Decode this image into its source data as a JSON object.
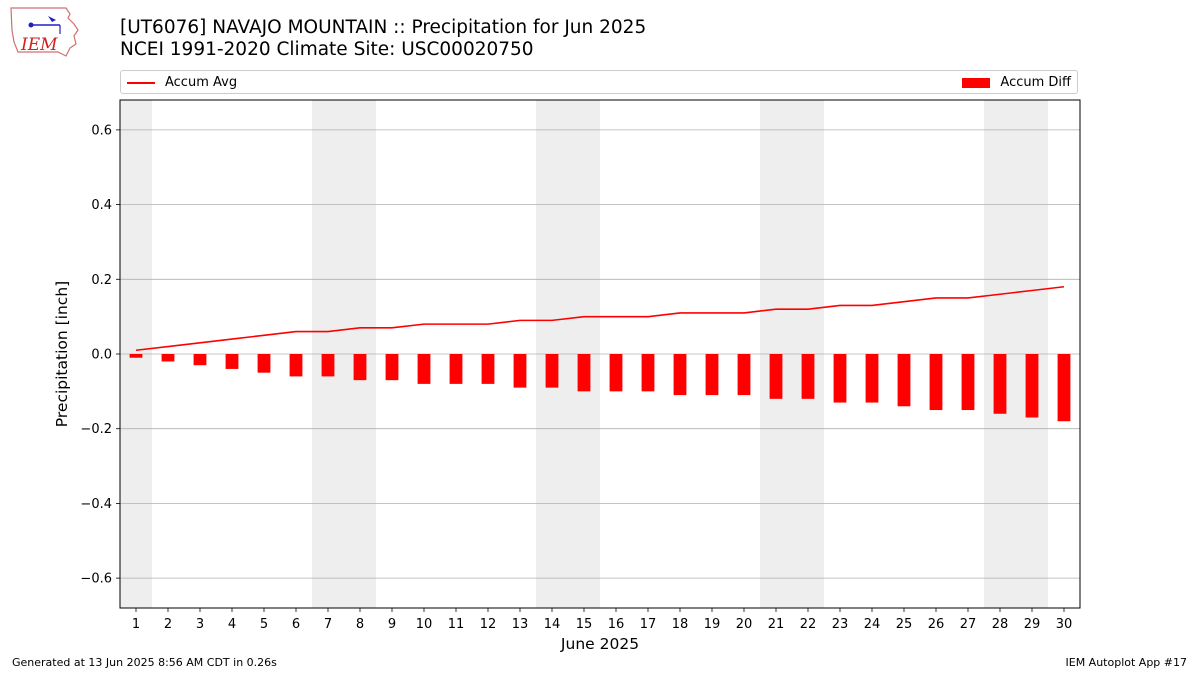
{
  "header": {
    "title_line1": "[UT6076] NAVAJO MOUNTAIN :: Precipitation for Jun 2025",
    "title_line2": "NCEI 1991-2020 Climate Site: USC00020750"
  },
  "logo": {
    "text": "IEM"
  },
  "footer": {
    "generated": "Generated at 13 Jun 2025 8:56 AM CDT in 0.26s",
    "app": "IEM Autoplot App #17"
  },
  "colors": {
    "series": "#ff0000",
    "weekend_shade": "#eeeeee",
    "grid": "#b0b0b0"
  },
  "chart_data": {
    "type": "bar",
    "title": "[UT6076] NAVAJO MOUNTAIN :: Precipitation for Jun 2025",
    "subtitle": "NCEI 1991-2020 Climate Site: USC00020750",
    "xlabel": "June 2025",
    "ylabel": "Precipitation [inch]",
    "ylim": [
      -0.68,
      0.68
    ],
    "xlim": [
      0.5,
      30.5
    ],
    "yticks": [
      -0.6,
      -0.4,
      -0.2,
      0.0,
      0.2,
      0.4,
      0.6
    ],
    "ytick_labels": [
      "−0.6",
      "−0.4",
      "−0.2",
      "0.0",
      "0.2",
      "0.4",
      "0.6"
    ],
    "grid": "horizontal",
    "legend_placement": "top",
    "categories": [
      1,
      2,
      3,
      4,
      5,
      6,
      7,
      8,
      9,
      10,
      11,
      12,
      13,
      14,
      15,
      16,
      17,
      18,
      19,
      20,
      21,
      22,
      23,
      24,
      25,
      26,
      27,
      28,
      29,
      30
    ],
    "weekend_days": [
      1,
      7,
      8,
      14,
      15,
      21,
      22,
      28,
      29
    ],
    "series": [
      {
        "name": "Accum Avg",
        "type": "line",
        "values": [
          0.01,
          0.02,
          0.03,
          0.04,
          0.05,
          0.06,
          0.06,
          0.07,
          0.07,
          0.08,
          0.08,
          0.08,
          0.09,
          0.09,
          0.1,
          0.1,
          0.1,
          0.11,
          0.11,
          0.11,
          0.12,
          0.12,
          0.13,
          0.13,
          0.14,
          0.15,
          0.15,
          0.16,
          0.17,
          0.18
        ]
      },
      {
        "name": "Accum Diff",
        "type": "bar",
        "values": [
          -0.01,
          -0.02,
          -0.03,
          -0.04,
          -0.05,
          -0.06,
          -0.06,
          -0.07,
          -0.07,
          -0.08,
          -0.08,
          -0.08,
          -0.09,
          -0.09,
          -0.1,
          -0.1,
          -0.1,
          -0.11,
          -0.11,
          -0.11,
          -0.12,
          -0.12,
          -0.13,
          -0.13,
          -0.14,
          -0.15,
          -0.15,
          -0.16,
          -0.17,
          -0.18
        ]
      }
    ]
  }
}
